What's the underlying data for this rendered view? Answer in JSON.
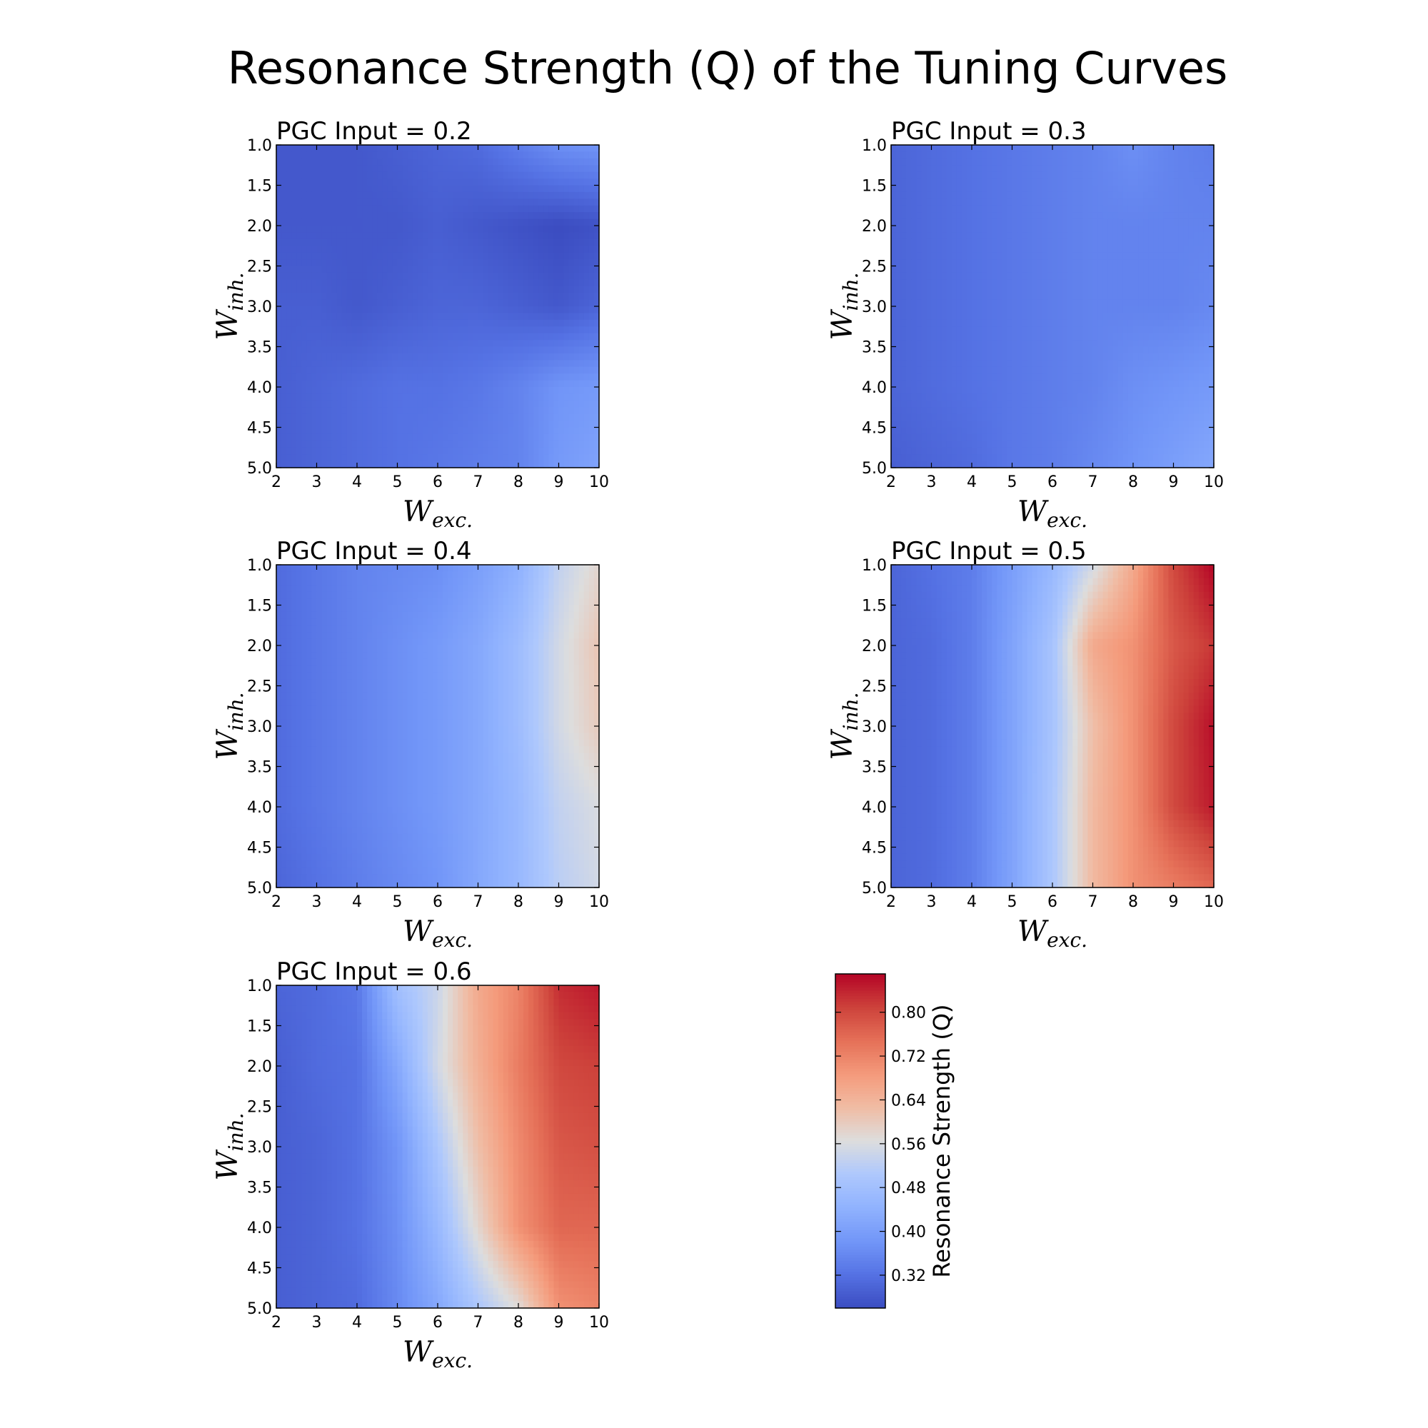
{
  "figure": {
    "title": "Resonance Strength (Q) of the Tuning Curves"
  },
  "chart_data": {
    "type": "heatmap",
    "colormap": "coolwarm",
    "x_name": "W",
    "x_subscript": "exc.",
    "y_name": "W",
    "y_subscript": "inh.",
    "xlim": [
      2,
      10
    ],
    "ylim": [
      1.0,
      5.0
    ],
    "y_inverted": true,
    "x_ticks": [
      "2",
      "3",
      "4",
      "5",
      "6",
      "7",
      "8",
      "9",
      "10"
    ],
    "y_ticks": [
      "1.0",
      "1.5",
      "2.0",
      "2.5",
      "3.0",
      "3.5",
      "4.0",
      "4.5",
      "5.0"
    ],
    "grid_x": [
      2,
      3,
      4,
      5,
      6,
      7,
      8,
      9,
      10
    ],
    "grid_y": [
      1.0,
      2.0,
      3.0,
      4.0,
      5.0
    ],
    "color_range": [
      0.26,
      0.87
    ],
    "panels": [
      {
        "title": "PGC Input = 0.2",
        "values": [
          [
            0.28,
            0.28,
            0.28,
            0.29,
            0.3,
            0.31,
            0.34,
            0.37,
            0.38
          ],
          [
            0.28,
            0.28,
            0.28,
            0.28,
            0.29,
            0.28,
            0.27,
            0.26,
            0.27
          ],
          [
            0.29,
            0.29,
            0.28,
            0.29,
            0.3,
            0.3,
            0.29,
            0.28,
            0.3
          ],
          [
            0.29,
            0.3,
            0.31,
            0.32,
            0.32,
            0.33,
            0.35,
            0.38,
            0.39
          ],
          [
            0.29,
            0.3,
            0.31,
            0.32,
            0.33,
            0.34,
            0.35,
            0.39,
            0.41
          ]
        ]
      },
      {
        "title": "PGC Input = 0.3",
        "values": [
          [
            0.3,
            0.31,
            0.32,
            0.33,
            0.34,
            0.35,
            0.37,
            0.35,
            0.34
          ],
          [
            0.3,
            0.31,
            0.32,
            0.33,
            0.34,
            0.35,
            0.35,
            0.35,
            0.35
          ],
          [
            0.3,
            0.31,
            0.32,
            0.33,
            0.34,
            0.35,
            0.35,
            0.35,
            0.36
          ],
          [
            0.3,
            0.31,
            0.32,
            0.33,
            0.34,
            0.35,
            0.37,
            0.38,
            0.39
          ],
          [
            0.29,
            0.3,
            0.31,
            0.33,
            0.34,
            0.36,
            0.38,
            0.4,
            0.42
          ]
        ]
      },
      {
        "title": "PGC Input = 0.4",
        "values": [
          [
            0.31,
            0.33,
            0.35,
            0.36,
            0.37,
            0.4,
            0.44,
            0.53,
            0.58
          ],
          [
            0.31,
            0.33,
            0.35,
            0.37,
            0.39,
            0.42,
            0.47,
            0.55,
            0.61
          ],
          [
            0.31,
            0.33,
            0.35,
            0.37,
            0.39,
            0.42,
            0.47,
            0.55,
            0.6
          ],
          [
            0.31,
            0.33,
            0.35,
            0.37,
            0.39,
            0.42,
            0.46,
            0.53,
            0.56
          ],
          [
            0.3,
            0.32,
            0.34,
            0.36,
            0.38,
            0.42,
            0.46,
            0.52,
            0.55
          ]
        ]
      },
      {
        "title": "PGC Input = 0.5",
        "values": [
          [
            0.3,
            0.32,
            0.34,
            0.4,
            0.46,
            0.55,
            0.66,
            0.8,
            0.87
          ],
          [
            0.3,
            0.31,
            0.34,
            0.41,
            0.49,
            0.66,
            0.7,
            0.78,
            0.82
          ],
          [
            0.3,
            0.31,
            0.34,
            0.41,
            0.49,
            0.62,
            0.7,
            0.8,
            0.86
          ],
          [
            0.3,
            0.31,
            0.34,
            0.41,
            0.5,
            0.63,
            0.7,
            0.8,
            0.85
          ],
          [
            0.3,
            0.31,
            0.34,
            0.41,
            0.5,
            0.63,
            0.7,
            0.73,
            0.76
          ]
        ]
      },
      {
        "title": "PGC Input = 0.6",
        "values": [
          [
            0.3,
            0.31,
            0.33,
            0.48,
            0.54,
            0.66,
            0.72,
            0.83,
            0.85
          ],
          [
            0.29,
            0.31,
            0.32,
            0.42,
            0.55,
            0.65,
            0.73,
            0.8,
            0.81
          ],
          [
            0.29,
            0.3,
            0.32,
            0.38,
            0.5,
            0.62,
            0.71,
            0.78,
            0.79
          ],
          [
            0.29,
            0.3,
            0.32,
            0.37,
            0.46,
            0.58,
            0.7,
            0.76,
            0.76
          ],
          [
            0.29,
            0.3,
            0.31,
            0.36,
            0.42,
            0.5,
            0.57,
            0.7,
            0.72
          ]
        ]
      }
    ],
    "colorbar": {
      "label": "Resonance Strength (Q)",
      "ticks": [
        0.32,
        0.4,
        0.48,
        0.56,
        0.64,
        0.72,
        0.8
      ],
      "tick_labels": [
        "0.32",
        "0.40",
        "0.48",
        "0.56",
        "0.64",
        "0.72",
        "0.80"
      ]
    }
  }
}
